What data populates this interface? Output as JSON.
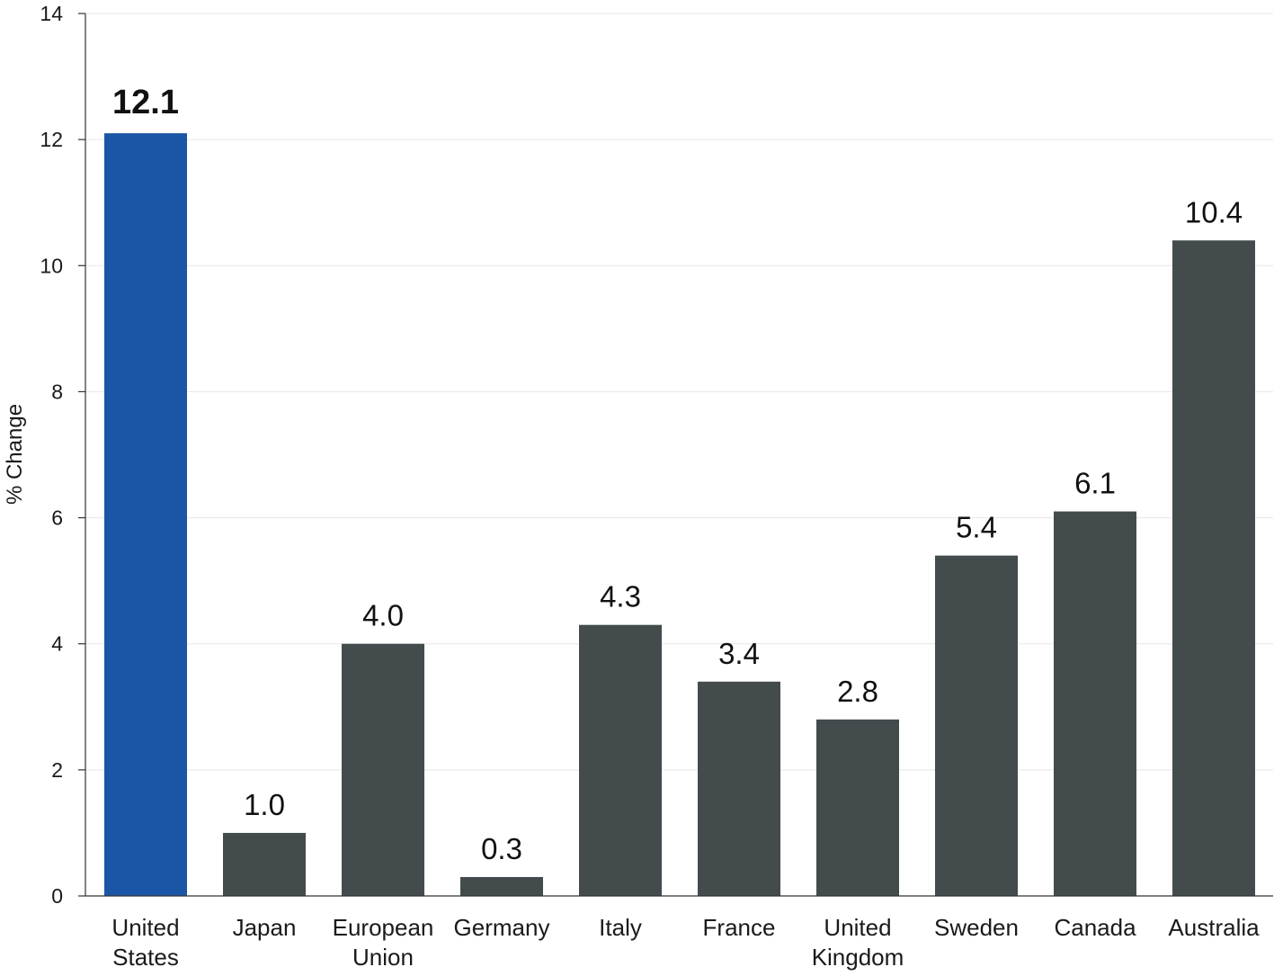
{
  "chart_data": {
    "type": "bar",
    "title": "",
    "xlabel": "",
    "ylabel": "% Change",
    "categories": [
      [
        "United",
        "States"
      ],
      [
        "Japan"
      ],
      [
        "European",
        "Union"
      ],
      [
        "Germany"
      ],
      [
        "Italy"
      ],
      [
        "France"
      ],
      [
        "United",
        "Kingdom"
      ],
      [
        "Sweden"
      ],
      [
        "Canada"
      ],
      [
        "Australia"
      ]
    ],
    "values": [
      12.1,
      1.0,
      4.0,
      0.3,
      4.3,
      3.4,
      2.8,
      5.4,
      6.1,
      10.4
    ],
    "value_labels": [
      "12.1",
      "1.0",
      "4.0",
      "0.3",
      "4.3",
      "3.4",
      "2.8",
      "5.4",
      "6.1",
      "10.4"
    ],
    "highlight_index": 0,
    "ylim": [
      0,
      14
    ],
    "yticks": [
      0,
      2,
      4,
      6,
      8,
      10,
      12,
      14
    ],
    "grid": true,
    "legend": "none",
    "colors": {
      "highlight": "#1a56a5",
      "bar": "#434b4d",
      "grid": "#e6e6e6",
      "axis": "#333333"
    }
  }
}
